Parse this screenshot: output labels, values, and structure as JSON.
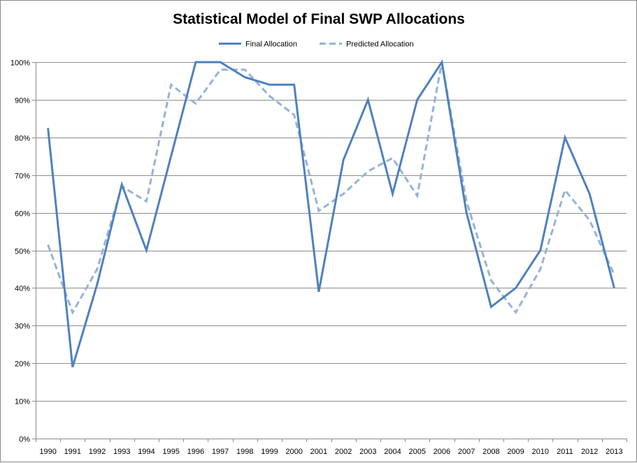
{
  "chart_data": {
    "type": "line",
    "title": "Statistical Model of Final SWP Allocations",
    "xlabel": "",
    "ylabel": "",
    "x": [
      "1990",
      "1991",
      "1992",
      "1993",
      "1994",
      "1995",
      "1996",
      "1997",
      "1998",
      "1999",
      "2000",
      "2001",
      "2002",
      "2003",
      "2004",
      "2005",
      "2006",
      "2007",
      "2008",
      "2009",
      "2010",
      "2011",
      "2012",
      "2013"
    ],
    "ylim": [
      0,
      100
    ],
    "yticks": [
      "0%",
      "10%",
      "20%",
      "30%",
      "40%",
      "50%",
      "60%",
      "70%",
      "80%",
      "90%",
      "100%"
    ],
    "grid": true,
    "legend_position": "top",
    "series": [
      {
        "name": "Final Allocation",
        "style": "solid",
        "color": "#4f81bd",
        "values": [
          82.5,
          19,
          41,
          67.5,
          50,
          75,
          100,
          100,
          96,
          94,
          94,
          39,
          74,
          90,
          65,
          90,
          100,
          60,
          35,
          40,
          50,
          80,
          65,
          40
        ]
      },
      {
        "name": "Predicted Allocation",
        "style": "dashed",
        "color": "#95b3d7",
        "values": [
          51.5,
          33.5,
          45,
          67,
          63,
          94,
          89,
          98,
          98,
          91,
          86,
          60.5,
          65,
          71,
          74.5,
          64.5,
          100,
          63,
          42,
          33.5,
          45,
          66,
          58,
          43.5
        ]
      }
    ]
  }
}
